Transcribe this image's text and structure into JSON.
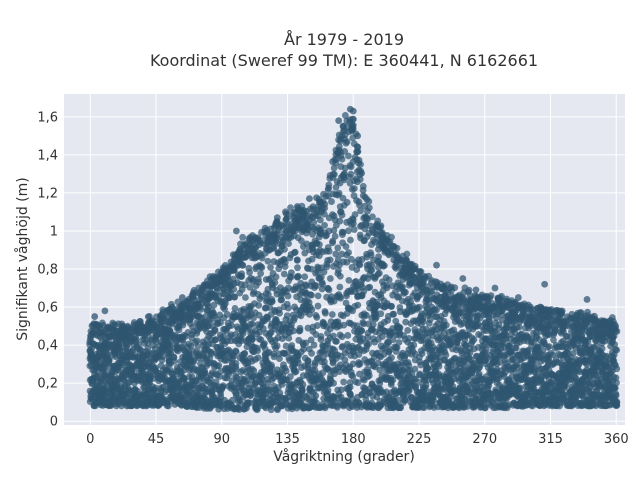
{
  "chart_data": {
    "type": "scatter",
    "title_line1": "År 1979 - 2019",
    "title_line2": "Koordinat (Sweref 99 TM): E 360441, N 6162661",
    "xlabel": "Vågriktning (grader)",
    "ylabel": "Signifikant våghöjd (m)",
    "xlim": [
      -18,
      366
    ],
    "ylim": [
      -0.02,
      1.72
    ],
    "x_ticks": [
      0,
      45,
      90,
      135,
      180,
      225,
      270,
      315,
      360
    ],
    "x_tick_labels": [
      "0",
      "45",
      "90",
      "135",
      "180",
      "225",
      "270",
      "315",
      "360"
    ],
    "y_ticks": [
      0,
      0.2,
      0.4,
      0.6,
      0.8,
      1,
      1.2,
      1.4,
      1.6
    ],
    "y_tick_labels": [
      "0",
      "0,2",
      "0,4",
      "0,6",
      "0,8",
      "1",
      "1,2",
      "1,4",
      "1,6"
    ],
    "grid": true,
    "legend": "none",
    "marker_color": "#2f5670",
    "plot_bg": "#e5e8f1",
    "envelope": {
      "x": [
        0,
        10,
        20,
        30,
        45,
        60,
        75,
        90,
        105,
        120,
        135,
        150,
        160,
        165,
        170,
        175,
        180,
        185,
        190,
        200,
        210,
        225,
        240,
        255,
        270,
        285,
        300,
        315,
        330,
        345,
        360
      ],
      "y_max": [
        0.52,
        0.5,
        0.5,
        0.52,
        0.55,
        0.62,
        0.7,
        0.8,
        0.95,
        1.0,
        1.1,
        1.12,
        1.2,
        1.35,
        1.5,
        1.6,
        1.58,
        1.38,
        1.15,
        1.0,
        0.92,
        0.8,
        0.72,
        0.68,
        0.66,
        0.64,
        0.6,
        0.6,
        0.56,
        0.55,
        0.52
      ],
      "y_min": [
        0.08,
        0.08,
        0.08,
        0.08,
        0.08,
        0.08,
        0.07,
        0.06,
        0.06,
        0.06,
        0.06,
        0.07,
        0.07,
        0.07,
        0.07,
        0.07,
        0.07,
        0.07,
        0.07,
        0.07,
        0.07,
        0.07,
        0.07,
        0.07,
        0.07,
        0.07,
        0.08,
        0.08,
        0.08,
        0.08,
        0.08
      ]
    },
    "outliers": [
      {
        "x": 180,
        "y": 1.63
      },
      {
        "x": 178,
        "y": 1.64
      },
      {
        "x": 170,
        "y": 1.58
      },
      {
        "x": 173,
        "y": 1.55
      },
      {
        "x": 183,
        "y": 1.5
      },
      {
        "x": 150,
        "y": 1.17
      },
      {
        "x": 142,
        "y": 1.12
      },
      {
        "x": 128,
        "y": 1.07
      },
      {
        "x": 100,
        "y": 1.0
      },
      {
        "x": 200,
        "y": 0.98
      },
      {
        "x": 237,
        "y": 0.82
      },
      {
        "x": 255,
        "y": 0.75
      },
      {
        "x": 264,
        "y": 0.69
      },
      {
        "x": 277,
        "y": 0.7
      },
      {
        "x": 293,
        "y": 0.65
      },
      {
        "x": 311,
        "y": 0.72
      },
      {
        "x": 308,
        "y": 0.6
      },
      {
        "x": 323,
        "y": 0.58
      },
      {
        "x": 340,
        "y": 0.64
      },
      {
        "x": 356,
        "y": 0.53
      },
      {
        "x": 3,
        "y": 0.55
      },
      {
        "x": 10,
        "y": 0.58
      },
      {
        "x": 42,
        "y": 0.53
      },
      {
        "x": 56,
        "y": 0.6
      },
      {
        "x": 63,
        "y": 0.65
      },
      {
        "x": 82,
        "y": 0.76
      }
    ]
  }
}
